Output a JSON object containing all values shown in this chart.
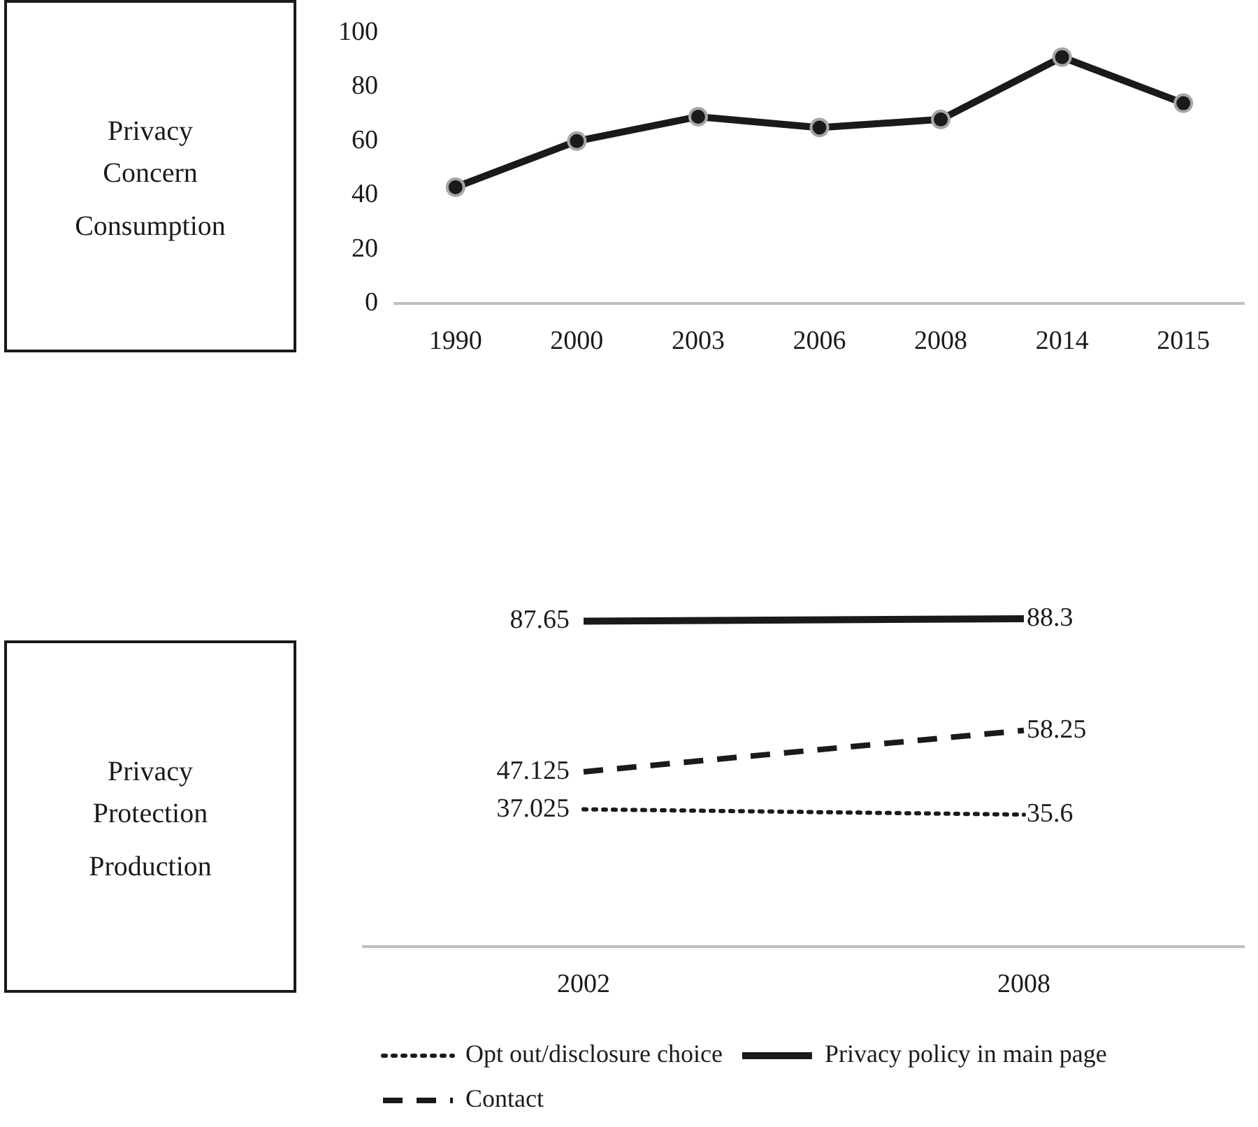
{
  "chart_data": [
    {
      "type": "other",
      "title": "Privacy Concern",
      "annotations": [
        "Consumption"
      ]
    },
    {
      "type": "line",
      "categories": [
        "1990",
        "2000",
        "2003",
        "2006",
        "2008",
        "2014",
        "2015"
      ],
      "series": [
        {
          "color": "#1a1a1a",
          "values": [
            43,
            60,
            69,
            65,
            68,
            91,
            74
          ]
        }
      ],
      "ylim": [
        0,
        100
      ],
      "yticks": [
        0,
        20,
        40,
        60,
        80,
        100
      ],
      "marker": "circle",
      "line_style": "solid"
    },
    {
      "type": "other",
      "title": "Privacy Protection",
      "annotations": [
        "Production"
      ]
    },
    {
      "type": "line",
      "categories": [
        "2002",
        "2008"
      ],
      "series": [
        {
          "name": "Opt out/disclosure choice",
          "color": "#1a1a1a",
          "values": [
            37.025,
            35.6
          ],
          "line_style": "dotted"
        },
        {
          "name": "Privacy policy in main page",
          "color": "#1a1a1a",
          "values": [
            87.65,
            88.3
          ],
          "line_style": "solid"
        },
        {
          "name": "Contact",
          "color": "#1a1a1a",
          "values": [
            47.125,
            58.25
          ],
          "line_style": "dashed"
        }
      ],
      "tick_labels": "x",
      "data_labels": true,
      "legend": "bottom",
      "marker": "none"
    }
  ]
}
